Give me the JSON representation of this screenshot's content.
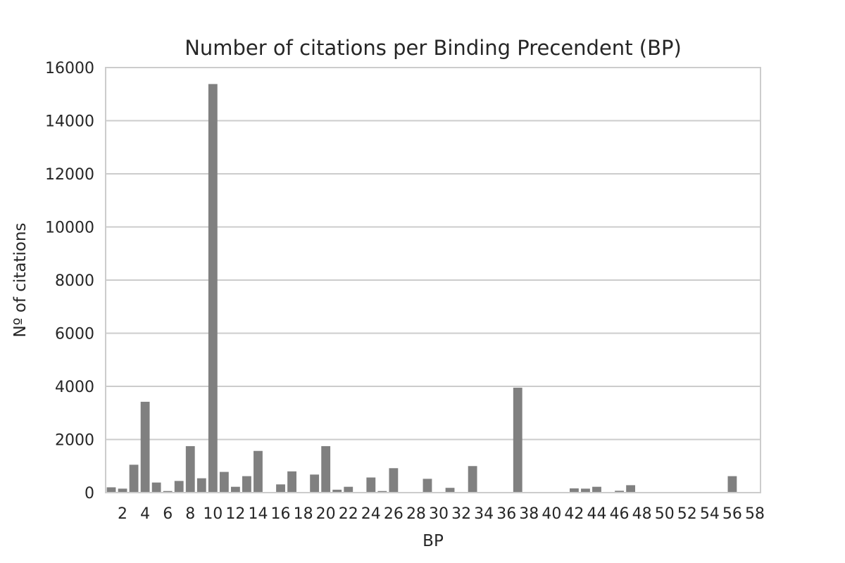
{
  "chart_data": {
    "type": "bar",
    "title": "Number of citations per Binding Precendent (BP)",
    "xlabel": "BP",
    "ylabel": "Nº of citations",
    "ylim": [
      0,
      16000
    ],
    "yticks": [
      0,
      2000,
      4000,
      6000,
      8000,
      10000,
      12000,
      14000,
      16000
    ],
    "grid": true,
    "bar_color": "#808080",
    "categories": [
      1,
      2,
      3,
      4,
      5,
      6,
      7,
      8,
      9,
      10,
      11,
      12,
      13,
      14,
      15,
      16,
      17,
      18,
      19,
      20,
      21,
      22,
      23,
      24,
      25,
      26,
      27,
      28,
      29,
      30,
      31,
      32,
      33,
      34,
      35,
      36,
      37,
      38,
      39,
      40,
      41,
      42,
      43,
      44,
      45,
      46,
      47,
      48,
      49,
      50,
      51,
      52,
      53,
      54,
      55,
      56,
      57,
      58
    ],
    "tick_labels": [
      "2",
      "4",
      "6",
      "8",
      "10",
      "12",
      "14",
      "16",
      "18",
      "20",
      "22",
      "24",
      "26",
      "28",
      "30",
      "32",
      "34",
      "36",
      "38",
      "40",
      "42",
      "44",
      "46",
      "48",
      "50",
      "52",
      "54",
      "56",
      "58"
    ],
    "tick_label_categories": [
      2,
      4,
      6,
      8,
      10,
      12,
      14,
      16,
      18,
      20,
      22,
      24,
      26,
      28,
      30,
      32,
      34,
      36,
      38,
      40,
      42,
      44,
      46,
      48,
      50,
      52,
      54,
      56,
      58
    ],
    "values": [
      200,
      150,
      1050,
      3420,
      380,
      60,
      440,
      1750,
      540,
      15380,
      780,
      220,
      620,
      1570,
      0,
      310,
      800,
      0,
      680,
      1750,
      110,
      220,
      0,
      570,
      60,
      920,
      0,
      0,
      520,
      0,
      180,
      0,
      1000,
      0,
      0,
      0,
      3950,
      0,
      0,
      0,
      0,
      160,
      150,
      220,
      0,
      70,
      280,
      0,
      0,
      0,
      0,
      0,
      0,
      20,
      0,
      620,
      0,
      0
    ]
  }
}
